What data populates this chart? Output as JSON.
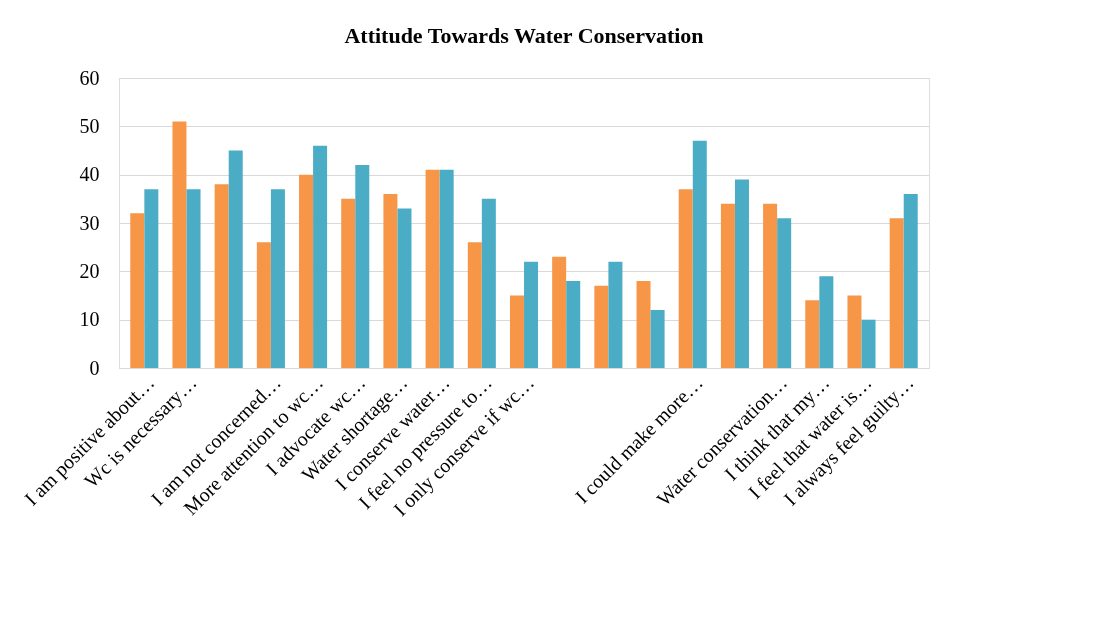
{
  "chart_data": {
    "type": "bar",
    "title": "Attitude Towards Water Conservation",
    "categories": [
      "I am positive about…",
      "Wc is necessary…",
      null,
      "I am not concerned…",
      "More attention to wc…",
      "I advocate wc…",
      "Water shortage…",
      "I conserve water…",
      "I feel no pressure to…",
      "I only conserve if wc…",
      null,
      null,
      null,
      "I could make more…",
      null,
      "Water conservation…",
      "I think that my…",
      "I feel that water is…",
      "I always feel guilty…"
    ],
    "series": [
      {
        "color": "#f79646",
        "values": [
          32,
          51,
          38,
          26,
          40,
          35,
          36,
          41,
          26,
          15,
          23,
          17,
          18,
          37,
          34,
          34,
          14,
          15,
          31
        ]
      },
      {
        "color": "#4bacc6",
        "values": [
          37,
          37,
          45,
          37,
          46,
          42,
          33,
          41,
          35,
          22,
          18,
          22,
          12,
          47,
          39,
          31,
          19,
          10,
          36
        ]
      }
    ],
    "ylim": [
      0,
      60
    ],
    "yticks": [
      0,
      10,
      20,
      30,
      40,
      50,
      60
    ],
    "grid": "y",
    "legend": false
  }
}
